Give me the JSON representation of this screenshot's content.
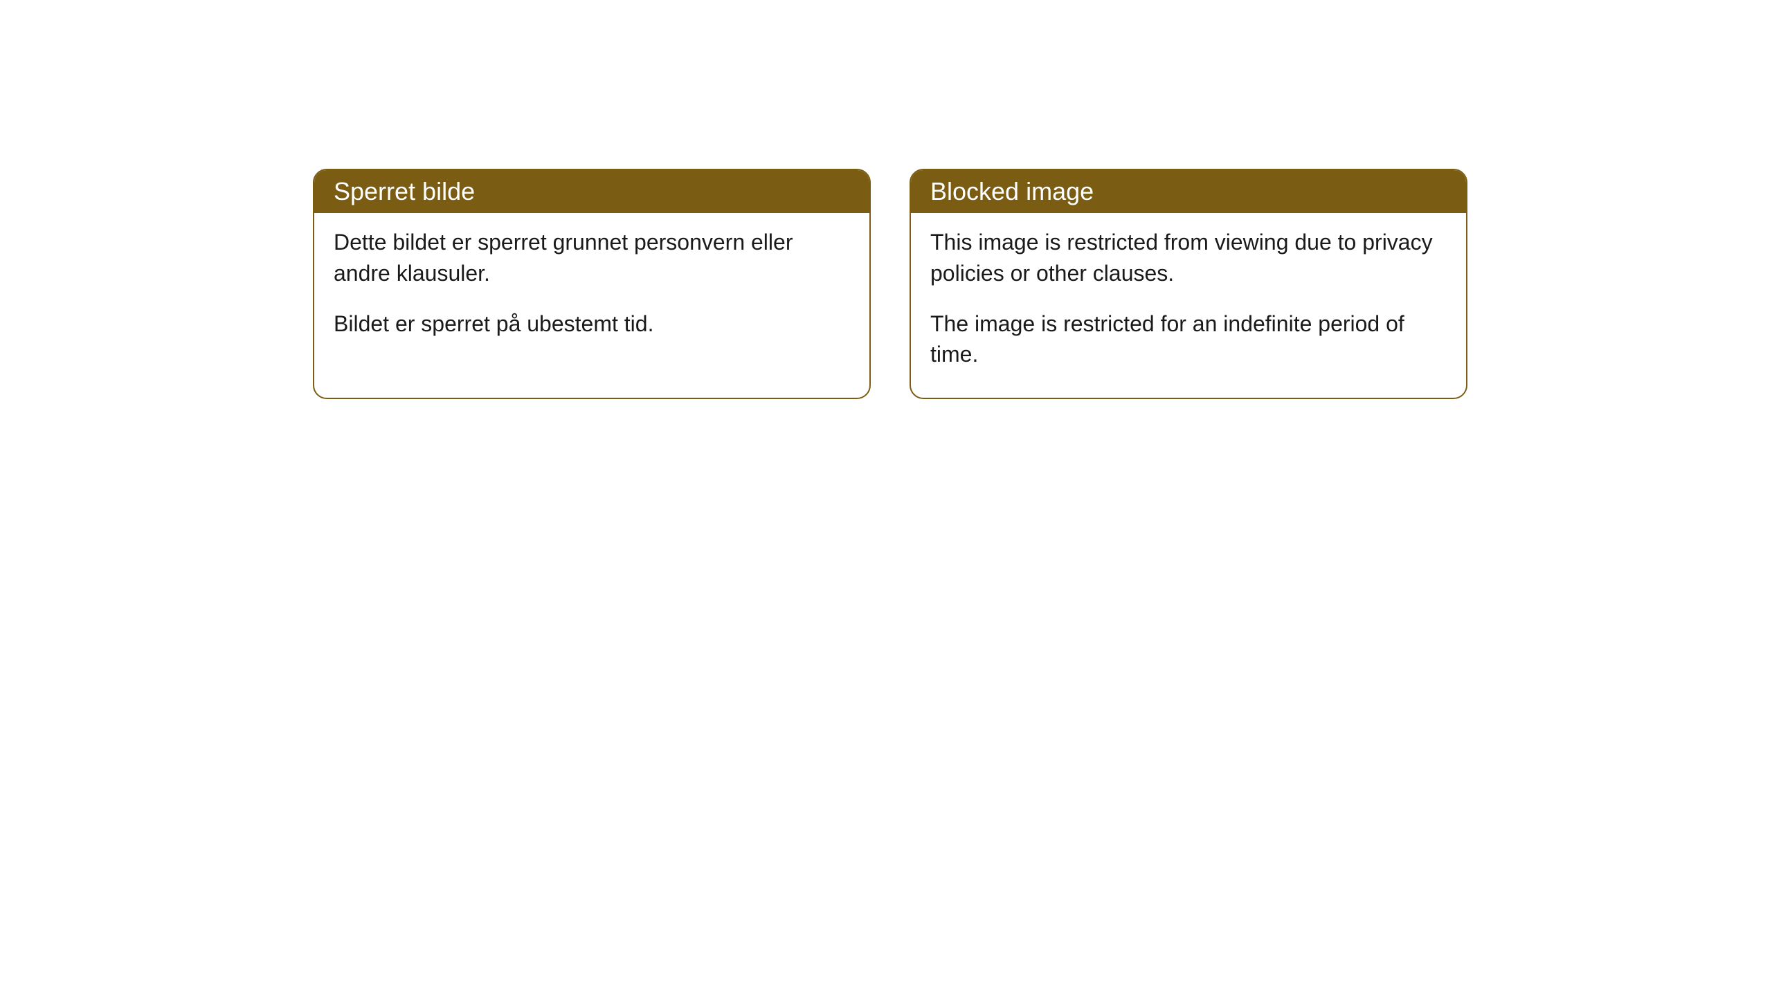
{
  "cards": [
    {
      "title": "Sperret bilde",
      "para1": "Dette bildet er sperret grunnet personvern eller andre klausuler.",
      "para2": "Bildet er sperret på ubestemt tid."
    },
    {
      "title": "Blocked image",
      "para1": "This image is restricted from viewing due to privacy policies or other clauses.",
      "para2": "The image is restricted for an indefinite period of time."
    }
  ],
  "styling": {
    "header_bg": "#7a5c13",
    "header_text_color": "#ffffff",
    "border_color": "#7a5c13",
    "body_bg": "#ffffff",
    "body_text_color": "#1a1a1a",
    "border_radius": 20,
    "header_fontsize": 36,
    "body_fontsize": 32
  }
}
